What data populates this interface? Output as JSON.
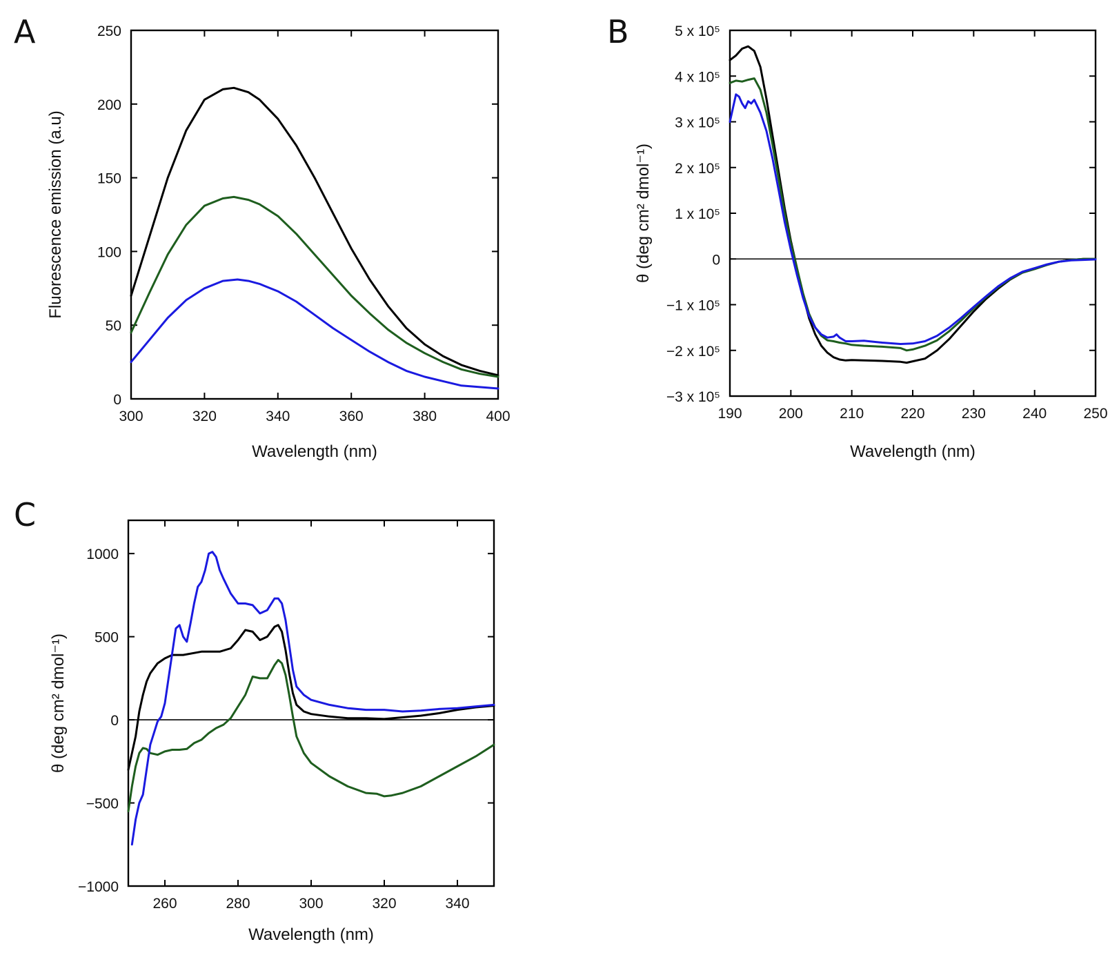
{
  "chart_data": [
    {
      "panel": "A",
      "type": "line",
      "xlabel": "Wavelength (nm)",
      "ylabel": "Fluorescence emission (a.u)",
      "xlim": [
        300,
        400
      ],
      "ylim": [
        0,
        250
      ],
      "xticks": [
        300,
        320,
        340,
        360,
        380,
        400
      ],
      "xtick_labels": [
        "300",
        "320",
        "340",
        "360",
        "380",
        "400"
      ],
      "yticks": [
        0,
        50,
        100,
        150,
        200,
        250
      ],
      "ytick_labels": [
        "0",
        "50",
        "100",
        "150",
        "200",
        "250"
      ],
      "zero_line": false,
      "series": [
        {
          "name": "black",
          "color": "#000000",
          "x": [
            300,
            305,
            310,
            315,
            320,
            325,
            328,
            332,
            335,
            340,
            345,
            350,
            355,
            360,
            365,
            370,
            375,
            380,
            385,
            390,
            395,
            400
          ],
          "y": [
            70,
            110,
            150,
            182,
            203,
            210,
            211,
            208,
            203,
            190,
            172,
            150,
            126,
            102,
            81,
            63,
            48,
            37,
            29,
            23,
            19,
            16
          ]
        },
        {
          "name": "green",
          "color": "#1e5e1e",
          "x": [
            300,
            305,
            310,
            315,
            320,
            325,
            328,
            332,
            335,
            340,
            345,
            350,
            355,
            360,
            365,
            370,
            375,
            380,
            385,
            390,
            395,
            400
          ],
          "y": [
            45,
            72,
            98,
            118,
            131,
            136,
            137,
            135,
            132,
            124,
            112,
            98,
            84,
            70,
            58,
            47,
            38,
            31,
            25,
            20,
            17,
            15
          ]
        },
        {
          "name": "blue",
          "color": "#1a1ae0",
          "x": [
            300,
            305,
            310,
            315,
            320,
            325,
            329,
            332,
            335,
            340,
            345,
            350,
            355,
            360,
            365,
            370,
            375,
            380,
            385,
            390,
            395,
            400
          ],
          "y": [
            25,
            40,
            55,
            67,
            75,
            80,
            81,
            80,
            78,
            73,
            66,
            57,
            48,
            40,
            32,
            25,
            19,
            15,
            12,
            9,
            8,
            7
          ]
        }
      ]
    },
    {
      "panel": "B",
      "type": "line",
      "xlabel": "Wavelength (nm)",
      "ylabel": "θ (deg cm² dmol⁻¹)",
      "xlim": [
        190,
        250
      ],
      "ylim": [
        -300000,
        500000
      ],
      "xticks": [
        190,
        200,
        210,
        220,
        230,
        240,
        250
      ],
      "xtick_labels": [
        "190",
        "200",
        "210",
        "220",
        "230",
        "240",
        "250"
      ],
      "yticks": [
        -300000,
        -200000,
        -100000,
        0,
        100000,
        200000,
        300000,
        400000,
        500000
      ],
      "ytick_labels": [
        "−3 x 10⁵",
        "−2 x 10⁵",
        "−1 x 10⁵",
        "0",
        "1 x 10⁵",
        "2 x 10⁵",
        "3 x 10⁵",
        "4 x 10⁵",
        "5 x 10⁵"
      ],
      "zero_line": true,
      "series": [
        {
          "name": "black",
          "color": "#000000",
          "x": [
            190,
            191,
            192,
            193,
            194,
            195,
            196,
            197,
            198,
            199,
            200,
            201,
            202,
            203,
            204,
            205,
            206,
            207,
            208,
            209,
            210,
            212,
            215,
            218,
            219,
            220,
            222,
            224,
            226,
            228,
            230,
            232,
            234,
            236,
            238,
            240,
            242,
            244,
            246,
            248,
            250
          ],
          "y": [
            435000,
            445000,
            460000,
            465000,
            455000,
            420000,
            350000,
            270000,
            190000,
            110000,
            40000,
            -20000,
            -80000,
            -130000,
            -165000,
            -190000,
            -205000,
            -215000,
            -220000,
            -222000,
            -221000,
            -222000,
            -223000,
            -225000,
            -227000,
            -224000,
            -218000,
            -200000,
            -175000,
            -145000,
            -115000,
            -88000,
            -65000,
            -45000,
            -30000,
            -22000,
            -13000,
            -6000,
            -2000,
            0,
            0
          ]
        },
        {
          "name": "green",
          "color": "#1e5e1e",
          "x": [
            190,
            191,
            192,
            193,
            194,
            195,
            196,
            197,
            198,
            199,
            200,
            201,
            202,
            203,
            204,
            205,
            206,
            207,
            208,
            209,
            210,
            212,
            215,
            218,
            219,
            220,
            222,
            224,
            226,
            228,
            230,
            232,
            234,
            236,
            238,
            240,
            242,
            244,
            246,
            248,
            250
          ],
          "y": [
            385000,
            390000,
            388000,
            392000,
            395000,
            370000,
            320000,
            250000,
            175000,
            100000,
            35000,
            -20000,
            -75000,
            -120000,
            -150000,
            -168000,
            -178000,
            -180000,
            -183000,
            -185000,
            -188000,
            -190000,
            -192000,
            -195000,
            -200000,
            -198000,
            -190000,
            -178000,
            -158000,
            -134000,
            -108000,
            -84000,
            -62000,
            -44000,
            -30000,
            -22000,
            -13000,
            -6000,
            -2000,
            0,
            0
          ]
        },
        {
          "name": "blue",
          "color": "#1a1ae0",
          "x": [
            190,
            190.5,
            191,
            191.5,
            192,
            192.5,
            193,
            193.5,
            194,
            195,
            196,
            197,
            198,
            199,
            200,
            201,
            202,
            203,
            204,
            205,
            206,
            207,
            207.5,
            208,
            209,
            210,
            212,
            215,
            218,
            220,
            222,
            224,
            226,
            228,
            230,
            232,
            234,
            236,
            238,
            240,
            242,
            244,
            246,
            248,
            250
          ],
          "y": [
            300000,
            330000,
            360000,
            355000,
            340000,
            330000,
            345000,
            340000,
            348000,
            320000,
            280000,
            220000,
            150000,
            80000,
            20000,
            -35000,
            -85000,
            -125000,
            -150000,
            -165000,
            -172000,
            -170000,
            -165000,
            -172000,
            -180000,
            -180000,
            -179000,
            -183000,
            -186000,
            -185000,
            -180000,
            -168000,
            -150000,
            -128000,
            -105000,
            -82000,
            -60000,
            -42000,
            -28000,
            -20000,
            -12000,
            -6000,
            -3000,
            -2000,
            -1000
          ]
        }
      ]
    },
    {
      "panel": "C",
      "type": "line",
      "xlabel": "Wavelength (nm)",
      "ylabel": "θ (deg cm² dmol⁻¹)",
      "xlim": [
        250,
        350
      ],
      "ylim": [
        -1000,
        1200
      ],
      "xticks": [
        260,
        280,
        300,
        320,
        340
      ],
      "xtick_labels": [
        "260",
        "280",
        "300",
        "320",
        "340"
      ],
      "yticks": [
        -1000,
        -500,
        0,
        500,
        1000
      ],
      "ytick_labels": [
        "−1000",
        "−500",
        "0",
        "500",
        "1000"
      ],
      "zero_line": true,
      "series": [
        {
          "name": "black",
          "color": "#000000",
          "x": [
            250,
            251,
            252,
            253,
            254,
            255,
            256,
            258,
            260,
            262,
            265,
            270,
            275,
            278,
            280,
            282,
            284,
            286,
            288,
            290,
            291,
            292,
            293,
            294,
            295,
            296,
            298,
            300,
            305,
            310,
            315,
            320,
            325,
            330,
            335,
            340,
            345,
            350
          ],
          "y": [
            -300,
            -200,
            -100,
            50,
            150,
            230,
            280,
            340,
            370,
            390,
            390,
            410,
            410,
            430,
            480,
            540,
            530,
            480,
            500,
            560,
            570,
            530,
            420,
            280,
            160,
            90,
            50,
            35,
            20,
            10,
            10,
            5,
            15,
            25,
            40,
            60,
            75,
            85
          ]
        },
        {
          "name": "green",
          "color": "#1e5e1e",
          "x": [
            250,
            251,
            252,
            253,
            254,
            255,
            256,
            258,
            260,
            262,
            264,
            266,
            268,
            270,
            272,
            274,
            276,
            278,
            280,
            282,
            284,
            286,
            288,
            290,
            291,
            292,
            293,
            294,
            295,
            296,
            298,
            300,
            305,
            310,
            315,
            318,
            320,
            322,
            325,
            330,
            335,
            340,
            345,
            350
          ],
          "y": [
            -550,
            -400,
            -280,
            -200,
            -170,
            -175,
            -200,
            -210,
            -190,
            -180,
            -180,
            -175,
            -140,
            -120,
            -80,
            -50,
            -30,
            10,
            80,
            150,
            260,
            250,
            250,
            330,
            360,
            340,
            270,
            150,
            20,
            -100,
            -200,
            -260,
            -340,
            -400,
            -440,
            -445,
            -460,
            -455,
            -440,
            -400,
            -340,
            -280,
            -220,
            -150
          ]
        },
        {
          "name": "blue",
          "color": "#1a1ae0",
          "x": [
            251,
            252,
            253,
            254,
            255,
            256,
            257,
            258,
            259,
            260,
            261,
            262,
            263,
            264,
            265,
            266,
            267,
            268,
            269,
            270,
            271,
            272,
            273,
            274,
            275,
            276,
            278,
            280,
            282,
            284,
            286,
            288,
            290,
            291,
            292,
            293,
            294,
            295,
            296,
            298,
            300,
            305,
            310,
            315,
            320,
            325,
            330,
            335,
            340,
            345,
            350
          ],
          "y": [
            -750,
            -600,
            -500,
            -450,
            -300,
            -150,
            -80,
            -10,
            20,
            100,
            250,
            400,
            550,
            570,
            500,
            470,
            580,
            700,
            800,
            830,
            900,
            1000,
            1010,
            980,
            900,
            850,
            760,
            700,
            700,
            690,
            640,
            660,
            730,
            730,
            700,
            600,
            450,
            300,
            200,
            150,
            120,
            90,
            70,
            60,
            60,
            50,
            55,
            65,
            70,
            80,
            90
          ]
        }
      ]
    }
  ],
  "panels": [
    {
      "letter": "A"
    },
    {
      "letter": "B"
    },
    {
      "letter": "C"
    }
  ]
}
